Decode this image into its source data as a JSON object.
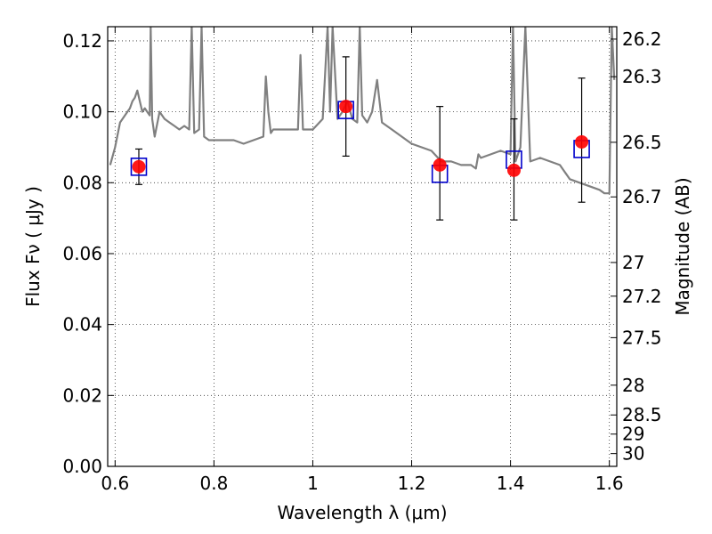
{
  "chart_data": {
    "type": "scatter",
    "xlabel": "Wavelength  λ (μm)",
    "ylabel": "Flux  Fν  ( μJy )",
    "ylabel_right": "Magnitude (AB)",
    "xlim": [
      0.585,
      1.615
    ],
    "ylim": [
      0.0,
      0.124
    ],
    "grid": true,
    "x_ticks": [
      0.6,
      0.8,
      1.0,
      1.2,
      1.4,
      1.6
    ],
    "x_tick_labels": [
      "0.6",
      "0.8",
      "1",
      "1.2",
      "1.4",
      "1.6"
    ],
    "y_ticks": [
      0.0,
      0.02,
      0.04,
      0.06,
      0.08,
      0.1,
      0.12
    ],
    "y_tick_labels": [
      "0.00",
      "0.02",
      "0.04",
      "0.06",
      "0.08",
      "0.10",
      "0.12"
    ],
    "mag_ticks": [
      {
        "label": "26.2",
        "flux": 0.1205
      },
      {
        "label": "26.3",
        "flux": 0.1099
      },
      {
        "label": "26.5",
        "flux": 0.0914
      },
      {
        "label": "26.7",
        "flux": 0.076
      },
      {
        "label": "27",
        "flux": 0.0575
      },
      {
        "label": "27.2",
        "flux": 0.048
      },
      {
        "label": "27.5",
        "flux": 0.0363
      },
      {
        "label": "28",
        "flux": 0.0229
      },
      {
        "label": "28.5",
        "flux": 0.0145
      },
      {
        "label": "29",
        "flux": 0.0091
      },
      {
        "label": "30",
        "flux": 0.0036
      }
    ],
    "series": [
      {
        "kind": "model-spectrum",
        "color": "#808080",
        "x": [
          0.59,
          0.6,
          0.61,
          0.62,
          0.63,
          0.635,
          0.64,
          0.645,
          0.65,
          0.655,
          0.66,
          0.665,
          0.67,
          0.672,
          0.675,
          0.68,
          0.69,
          0.7,
          0.71,
          0.72,
          0.73,
          0.74,
          0.75,
          0.755,
          0.76,
          0.77,
          0.775,
          0.78,
          0.79,
          0.8,
          0.82,
          0.84,
          0.86,
          0.88,
          0.9,
          0.905,
          0.91,
          0.915,
          0.92,
          0.94,
          0.96,
          0.97,
          0.975,
          0.98,
          1.0,
          1.02,
          1.03,
          1.035,
          1.04,
          1.05,
          1.06,
          1.07,
          1.08,
          1.09,
          1.095,
          1.1,
          1.11,
          1.12,
          1.13,
          1.14,
          1.16,
          1.2,
          1.24,
          1.26,
          1.28,
          1.3,
          1.32,
          1.33,
          1.335,
          1.34,
          1.36,
          1.38,
          1.4,
          1.405,
          1.41,
          1.42,
          1.43,
          1.44,
          1.46,
          1.48,
          1.5,
          1.52,
          1.54,
          1.56,
          1.58,
          1.59,
          1.592,
          1.6,
          1.605,
          1.61
        ],
        "y": [
          0.085,
          0.09,
          0.097,
          0.099,
          0.101,
          0.103,
          0.104,
          0.106,
          0.103,
          0.1,
          0.101,
          0.1,
          0.099,
          0.124,
          0.098,
          0.093,
          0.1,
          0.098,
          0.097,
          0.096,
          0.095,
          0.096,
          0.095,
          0.124,
          0.094,
          0.095,
          0.124,
          0.093,
          0.092,
          0.092,
          0.092,
          0.092,
          0.091,
          0.092,
          0.093,
          0.11,
          0.1,
          0.094,
          0.095,
          0.095,
          0.095,
          0.095,
          0.116,
          0.095,
          0.095,
          0.098,
          0.124,
          0.1,
          0.124,
          0.098,
          0.1,
          0.103,
          0.098,
          0.097,
          0.124,
          0.099,
          0.097,
          0.1,
          0.109,
          0.097,
          0.095,
          0.091,
          0.089,
          0.086,
          0.086,
          0.085,
          0.085,
          0.084,
          0.088,
          0.087,
          0.088,
          0.089,
          0.088,
          0.124,
          0.086,
          0.09,
          0.124,
          0.086,
          0.087,
          0.086,
          0.085,
          0.081,
          0.08,
          0.079,
          0.078,
          0.077,
          0.077,
          0.077,
          0.124,
          0.109
        ]
      },
      {
        "kind": "model-photometry",
        "color": "#0000cc",
        "x": [
          0.648,
          1.067,
          1.257,
          1.407,
          1.544
        ],
        "y": [
          0.0845,
          0.1005,
          0.0825,
          0.0865,
          0.0895
        ]
      },
      {
        "kind": "observed",
        "color": "#ff0000",
        "x": [
          0.648,
          1.067,
          1.257,
          1.407,
          1.544
        ],
        "y": [
          0.0845,
          0.1015,
          0.085,
          0.0835,
          0.0915
        ],
        "err_low": [
          0.0795,
          0.0875,
          0.0695,
          0.0695,
          0.0745
        ],
        "err_high": [
          0.0895,
          0.1155,
          0.1015,
          0.098,
          0.1095
        ]
      }
    ]
  }
}
